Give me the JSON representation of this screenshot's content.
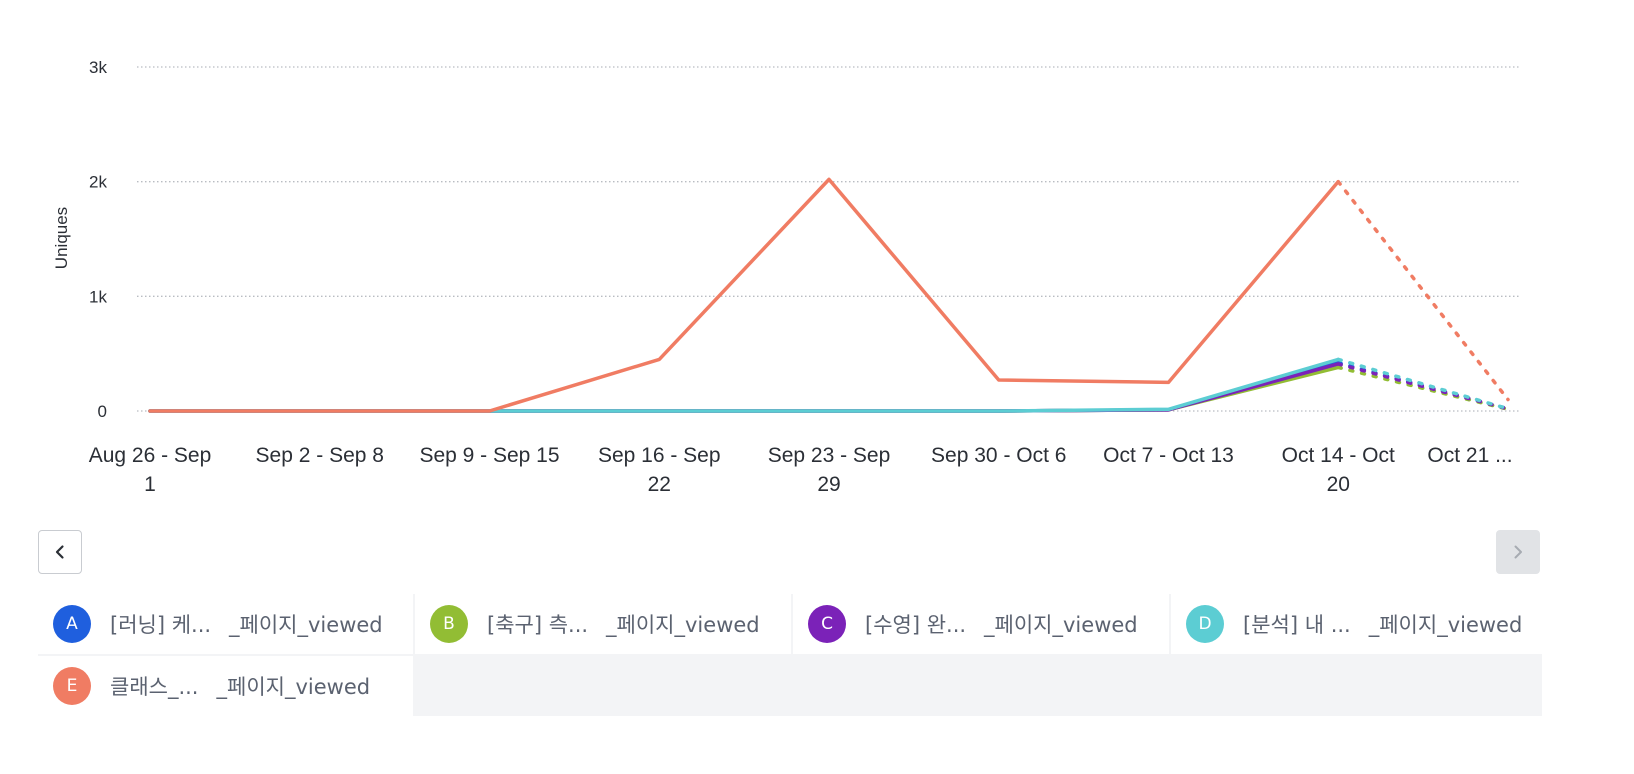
{
  "chart_data": {
    "type": "line",
    "ylabel": "Uniques",
    "ylim": [
      0,
      3000
    ],
    "yticks": [
      {
        "value": 0,
        "label": "0"
      },
      {
        "value": 1000,
        "label": "1k"
      },
      {
        "value": 2000,
        "label": "2k"
      },
      {
        "value": 3000,
        "label": "3k"
      }
    ],
    "categories": [
      [
        "Aug 26 - Sep",
        "1"
      ],
      [
        "Sep 2 - Sep 8"
      ],
      [
        "Sep 9 - Sep 15"
      ],
      [
        "Sep 16 - Sep",
        "22"
      ],
      [
        "Sep 23 - Sep",
        "29"
      ],
      [
        "Sep 30 - Oct 6"
      ],
      [
        "Oct 7 - Oct 13"
      ],
      [
        "Oct 14 - Oct",
        "20"
      ],
      [
        "Oct 21 ..."
      ]
    ],
    "grid": true,
    "incomplete_last_period": true,
    "series": [
      {
        "id": "A",
        "color": "#1f5fde",
        "values": [
          0,
          0,
          0,
          0,
          0,
          0,
          10,
          420,
          20
        ]
      },
      {
        "id": "B",
        "color": "#92bd34",
        "values": [
          0,
          0,
          0,
          0,
          0,
          0,
          10,
          380,
          15
        ]
      },
      {
        "id": "C",
        "color": "#7b22b8",
        "values": [
          0,
          0,
          0,
          0,
          0,
          0,
          10,
          410,
          18
        ]
      },
      {
        "id": "D",
        "color": "#5ccdd3",
        "values": [
          0,
          0,
          0,
          0,
          0,
          0,
          15,
          450,
          20
        ]
      },
      {
        "id": "E",
        "color": "#f07c63",
        "values": [
          0,
          0,
          0,
          450,
          2020,
          270,
          250,
          2000,
          100
        ]
      }
    ]
  },
  "nav": {
    "prev_icon": "chevron-left-icon",
    "next_icon": "chevron-right-icon"
  },
  "legend": [
    {
      "letter": "A",
      "color": "#1f5fde",
      "prefix": "[러닝] 케...",
      "suffix": "_페이지_viewed"
    },
    {
      "letter": "B",
      "color": "#92bd34",
      "prefix": "[축구] 측...",
      "suffix": "_페이지_viewed"
    },
    {
      "letter": "C",
      "color": "#7b22b8",
      "prefix": "[수영] 완...",
      "suffix": "_페이지_viewed"
    },
    {
      "letter": "D",
      "color": "#5ccdd3",
      "prefix": "[분석] 내 ...",
      "suffix": "_페이지_viewed"
    },
    {
      "letter": "E",
      "color": "#f07c63",
      "prefix": "클래스_...",
      "suffix": "_페이지_viewed"
    }
  ]
}
